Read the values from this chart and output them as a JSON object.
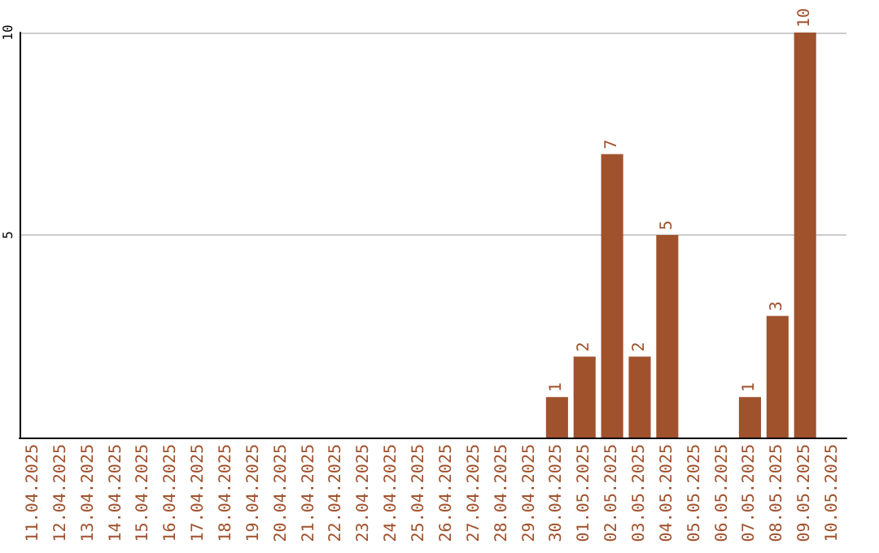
{
  "chart_data": {
    "type": "bar",
    "categories": [
      "11.04.2025",
      "12.04.2025",
      "13.04.2025",
      "14.04.2025",
      "15.04.2025",
      "16.04.2025",
      "17.04.2025",
      "18.04.2025",
      "19.04.2025",
      "20.04.2025",
      "21.04.2025",
      "22.04.2025",
      "23.04.2025",
      "24.04.2025",
      "25.04.2025",
      "26.04.2025",
      "27.04.2025",
      "28.04.2025",
      "29.04.2025",
      "30.04.2025",
      "01.05.2025",
      "02.05.2025",
      "03.05.2025",
      "04.05.2025",
      "05.05.2025",
      "06.05.2025",
      "07.05.2025",
      "08.05.2025",
      "09.05.2025",
      "10.05.2025"
    ],
    "values": [
      null,
      null,
      null,
      null,
      null,
      null,
      null,
      null,
      null,
      null,
      null,
      null,
      null,
      null,
      null,
      null,
      null,
      null,
      null,
      1,
      2,
      7,
      2,
      5,
      null,
      null,
      1,
      3,
      10,
      null
    ],
    "color": "#a0522d",
    "ylim": [
      0,
      10
    ],
    "yticks": [
      5,
      10
    ],
    "grid": "y",
    "data_labels": true
  }
}
